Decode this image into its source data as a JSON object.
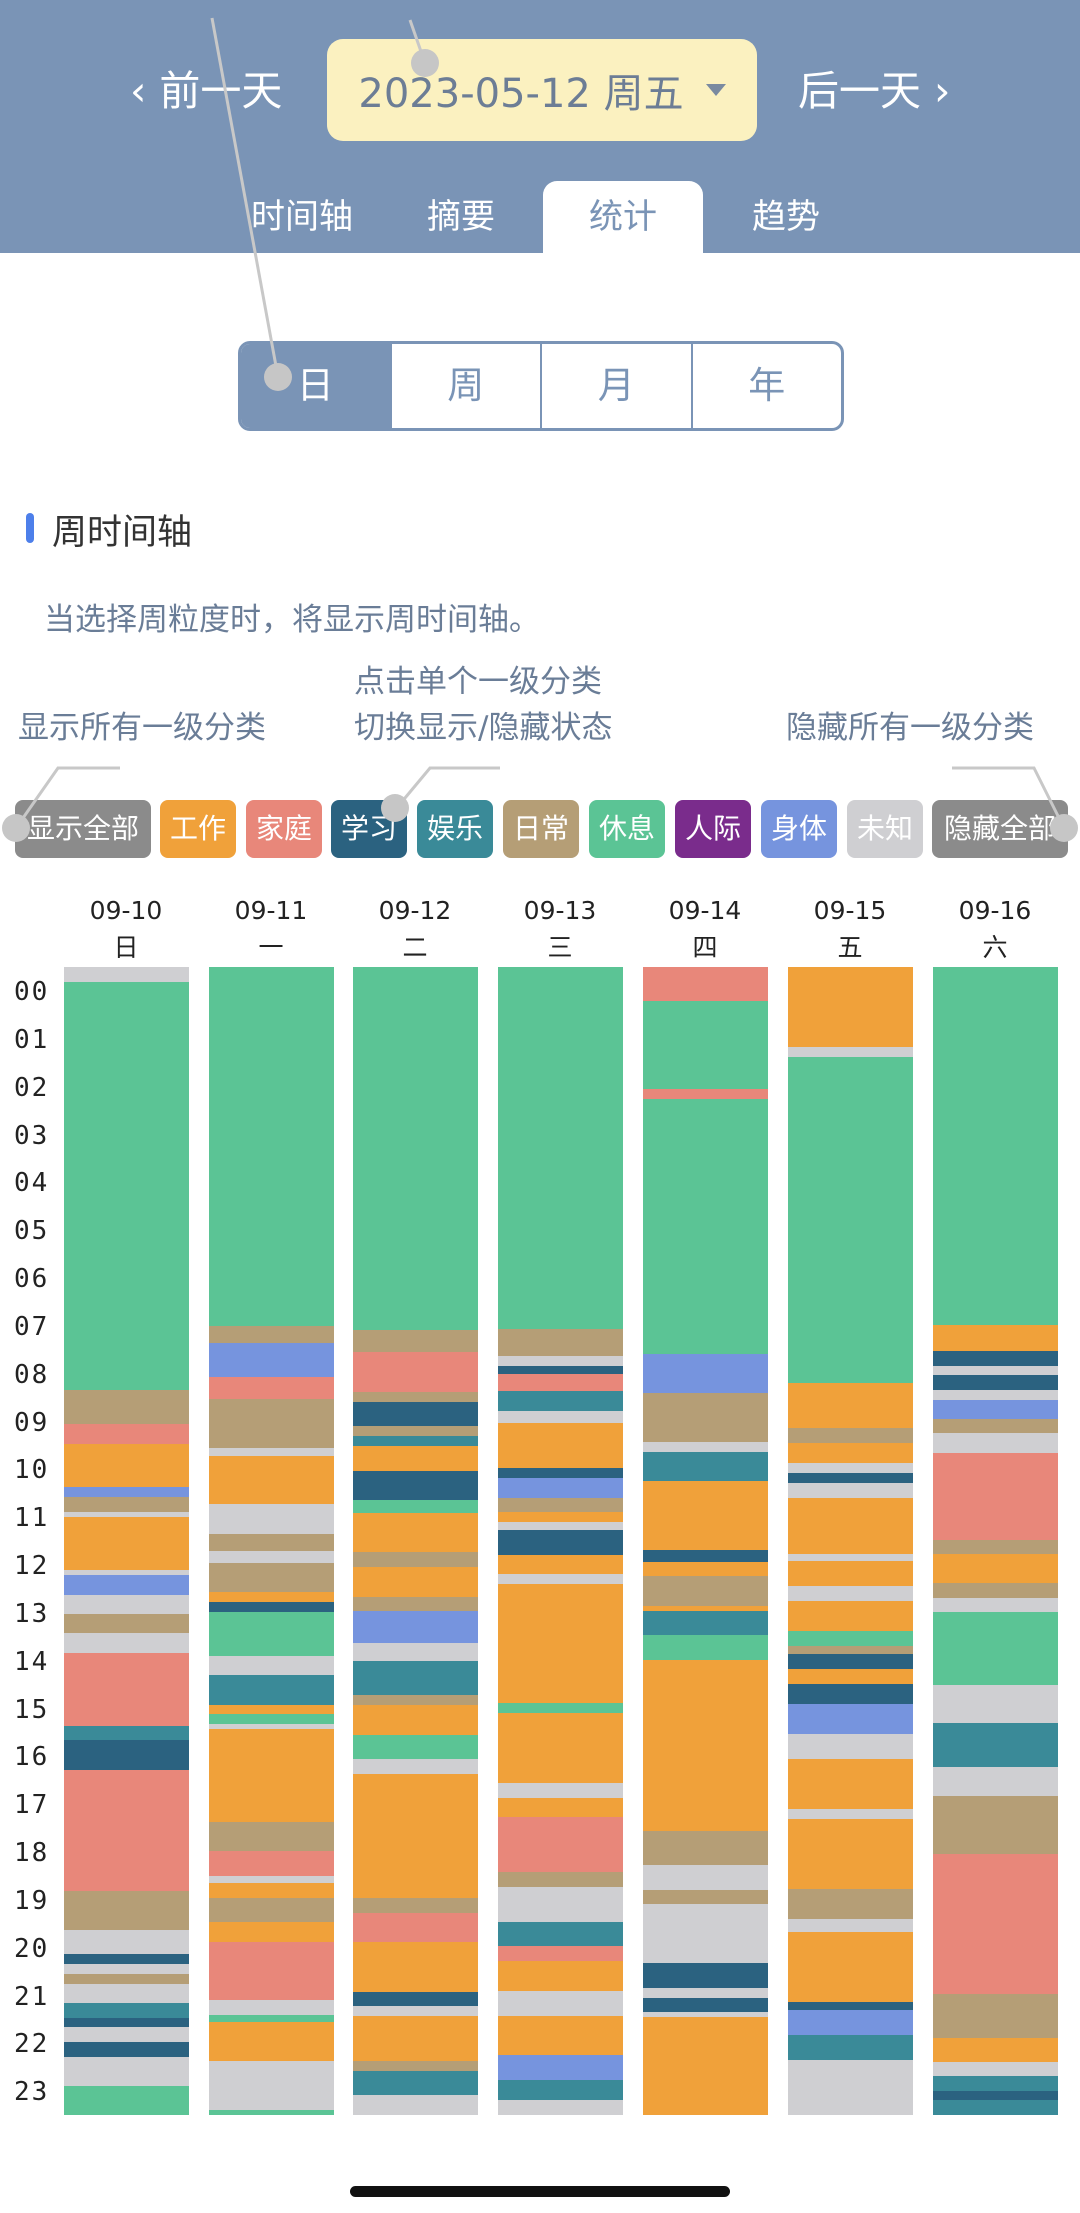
{
  "header": {
    "prev_label": "‹ 前一天",
    "next_label": "后一天 ›",
    "date_label": "2023-05-12  周五",
    "tabs": [
      {
        "label": "时间轴"
      },
      {
        "label": "摘要"
      },
      {
        "label": "统计",
        "active": true
      },
      {
        "label": "趋势"
      }
    ]
  },
  "granularity": {
    "options": [
      "日",
      "周",
      "月",
      "年"
    ],
    "selected": "日"
  },
  "section": {
    "title": "周时间轴",
    "description": "当选择周粒度时，将显示周时间轴。"
  },
  "annotations": {
    "show_all": "显示所有一级分类",
    "toggle": [
      "点击单个一级分类",
      "切换显示/隐藏状态"
    ],
    "hide_all": "隐藏所有一级分类"
  },
  "chips": [
    {
      "label": "显示全部",
      "color": "#8b8b8b"
    },
    {
      "label": "工作",
      "color": "#f0a13a"
    },
    {
      "label": "家庭",
      "color": "#e8877a"
    },
    {
      "label": "学习",
      "color": "#2b6280"
    },
    {
      "label": "娱乐",
      "color": "#3a8a98"
    },
    {
      "label": "日常",
      "color": "#b59e76"
    },
    {
      "label": "休息",
      "color": "#5bc495"
    },
    {
      "label": "人际",
      "color": "#7a2c8c"
    },
    {
      "label": "身体",
      "color": "#7694de"
    },
    {
      "label": "未知",
      "color": "#cfcfd2"
    },
    {
      "label": "隐藏全部",
      "color": "#8b8b8b"
    }
  ],
  "hours": [
    "00",
    "01",
    "02",
    "03",
    "04",
    "05",
    "06",
    "07",
    "08",
    "09",
    "10",
    "11",
    "12",
    "13",
    "14",
    "15",
    "16",
    "17",
    "18",
    "19",
    "20",
    "21",
    "22",
    "23"
  ],
  "colors": {
    "work": "#f0a13a",
    "family": "#e8877a",
    "study": "#2b6280",
    "ent": "#3a8a98",
    "daily": "#b59e76",
    "rest": "#5bc495",
    "social": "#7a2c8c",
    "body": "#7694de",
    "unknown": "#cfcfd2"
  },
  "days": [
    {
      "date": "09-10",
      "weekday": "日",
      "segments": [
        [
          "unknown",
          0.3
        ],
        [
          "rest",
          8.4
        ],
        [
          "daily",
          0.7
        ],
        [
          "family",
          0.4
        ],
        [
          "work",
          0.9
        ],
        [
          "body",
          0.2
        ],
        [
          "daily",
          0.3
        ],
        [
          "unknown",
          0.1
        ],
        [
          "work",
          1.1
        ],
        [
          "unknown",
          0.1
        ],
        [
          "body",
          0.4
        ],
        [
          "unknown",
          0.4
        ],
        [
          "daily",
          0.4
        ],
        [
          "unknown",
          0.4
        ],
        [
          "family",
          1.5
        ],
        [
          "ent",
          0.3
        ],
        [
          "study",
          0.6
        ],
        [
          "family",
          2.5
        ],
        [
          "daily",
          0.8
        ],
        [
          "unknown",
          0.5
        ],
        [
          "study",
          0.2
        ],
        [
          "unknown",
          0.2
        ],
        [
          "daily",
          0.2
        ],
        [
          "unknown",
          0.4
        ],
        [
          "ent",
          0.3
        ],
        [
          "study",
          0.2
        ],
        [
          "unknown",
          0.3
        ],
        [
          "study",
          0.3
        ],
        [
          "unknown",
          0.6
        ],
        [
          "rest",
          0.6
        ]
      ]
    },
    {
      "date": "09-11",
      "weekday": "一",
      "segments": [
        [
          "rest",
          7.35
        ],
        [
          "daily",
          0.35
        ],
        [
          "body",
          0.7
        ],
        [
          "family",
          0.45
        ],
        [
          "daily",
          1.0
        ],
        [
          "unknown",
          0.15
        ],
        [
          "work",
          1.0
        ],
        [
          "unknown",
          0.6
        ],
        [
          "daily",
          0.35
        ],
        [
          "unknown",
          0.25
        ],
        [
          "daily",
          0.6
        ],
        [
          "work",
          0.2
        ],
        [
          "study",
          0.2
        ],
        [
          "rest",
          0.9
        ],
        [
          "unknown",
          0.4
        ],
        [
          "ent",
          0.6
        ],
        [
          "work",
          0.2
        ],
        [
          "rest",
          0.2
        ],
        [
          "unknown",
          0.1
        ],
        [
          "work",
          1.9
        ],
        [
          "daily",
          0.6
        ],
        [
          "family",
          0.5
        ],
        [
          "unknown",
          0.15
        ],
        [
          "work",
          0.3
        ],
        [
          "daily",
          0.5
        ],
        [
          "work",
          0.4
        ],
        [
          "family",
          1.2
        ],
        [
          "unknown",
          0.3
        ],
        [
          "rest",
          0.15
        ],
        [
          "work",
          0.8
        ],
        [
          "unknown",
          1.0
        ],
        [
          "rest",
          0.1
        ]
      ]
    },
    {
      "date": "09-12",
      "weekday": "二",
      "segments": [
        [
          "rest",
          7.35
        ],
        [
          "daily",
          0.45
        ],
        [
          "family",
          0.8
        ],
        [
          "daily",
          0.2
        ],
        [
          "study",
          0.5
        ],
        [
          "daily",
          0.2
        ],
        [
          "ent",
          0.2
        ],
        [
          "work",
          0.5
        ],
        [
          "study",
          0.6
        ],
        [
          "rest",
          0.25
        ],
        [
          "work",
          0.8
        ],
        [
          "daily",
          0.3
        ],
        [
          "work",
          0.6
        ],
        [
          "daily",
          0.3
        ],
        [
          "body",
          0.65
        ],
        [
          "unknown",
          0.35
        ],
        [
          "ent",
          0.7
        ],
        [
          "daily",
          0.2
        ],
        [
          "work",
          0.6
        ],
        [
          "rest",
          0.5
        ],
        [
          "unknown",
          0.3
        ],
        [
          "work",
          2.5
        ],
        [
          "daily",
          0.3
        ],
        [
          "family",
          0.6
        ],
        [
          "work",
          1.0
        ],
        [
          "study",
          0.3
        ],
        [
          "unknown",
          0.2
        ],
        [
          "work",
          0.9
        ],
        [
          "daily",
          0.2
        ],
        [
          "ent",
          0.5
        ],
        [
          "unknown",
          0.4
        ]
      ]
    },
    {
      "date": "09-13",
      "weekday": "三",
      "segments": [
        [
          "rest",
          7.3
        ],
        [
          "daily",
          0.55
        ],
        [
          "unknown",
          0.2
        ],
        [
          "study",
          0.15
        ],
        [
          "family",
          0.35
        ],
        [
          "ent",
          0.4
        ],
        [
          "unknown",
          0.25
        ],
        [
          "work",
          0.9
        ],
        [
          "study",
          0.2
        ],
        [
          "body",
          0.4
        ],
        [
          "daily",
          0.3
        ],
        [
          "work",
          0.2
        ],
        [
          "unknown",
          0.15
        ],
        [
          "study",
          0.5
        ],
        [
          "work",
          0.4
        ],
        [
          "unknown",
          0.2
        ],
        [
          "work",
          2.4
        ],
        [
          "rest",
          0.2
        ],
        [
          "work",
          1.4
        ],
        [
          "unknown",
          0.3
        ],
        [
          "work",
          0.4
        ],
        [
          "family",
          1.1
        ],
        [
          "daily",
          0.3
        ],
        [
          "unknown",
          0.7
        ],
        [
          "ent",
          0.5
        ],
        [
          "family",
          0.3
        ],
        [
          "work",
          0.6
        ],
        [
          "unknown",
          0.5
        ],
        [
          "work",
          0.8
        ],
        [
          "body",
          0.5
        ],
        [
          "ent",
          0.4
        ],
        [
          "unknown",
          0.3
        ]
      ]
    },
    {
      "date": "09-14",
      "weekday": "四",
      "segments": [
        [
          "family",
          0.7
        ],
        [
          "rest",
          1.8
        ],
        [
          "family",
          0.2
        ],
        [
          "rest",
          5.2
        ],
        [
          "body",
          0.8
        ],
        [
          "daily",
          1.0
        ],
        [
          "unknown",
          0.2
        ],
        [
          "ent",
          0.6
        ],
        [
          "work",
          1.4
        ],
        [
          "study",
          0.25
        ],
        [
          "work",
          0.3
        ],
        [
          "daily",
          0.6
        ],
        [
          "work",
          0.1
        ],
        [
          "ent",
          0.5
        ],
        [
          "rest",
          0.5
        ],
        [
          "work",
          3.5
        ],
        [
          "daily",
          0.7
        ],
        [
          "unknown",
          0.5
        ],
        [
          "daily",
          0.3
        ],
        [
          "unknown",
          1.2
        ],
        [
          "study",
          0.5
        ],
        [
          "unknown",
          0.2
        ],
        [
          "study",
          0.3
        ],
        [
          "unknown",
          0.1
        ],
        [
          "work",
          2.0
        ]
      ]
    },
    {
      "date": "09-15",
      "weekday": "五",
      "segments": [
        [
          "work",
          1.6
        ],
        [
          "unknown",
          0.2
        ],
        [
          "rest",
          6.5
        ],
        [
          "work",
          0.9
        ],
        [
          "daily",
          0.3
        ],
        [
          "work",
          0.4
        ],
        [
          "unknown",
          0.2
        ],
        [
          "study",
          0.2
        ],
        [
          "unknown",
          0.3
        ],
        [
          "work",
          1.1
        ],
        [
          "unknown",
          0.15
        ],
        [
          "work",
          0.5
        ],
        [
          "unknown",
          0.3
        ],
        [
          "work",
          0.6
        ],
        [
          "rest",
          0.3
        ],
        [
          "daily",
          0.15
        ],
        [
          "study",
          0.3
        ],
        [
          "work",
          0.3
        ],
        [
          "study",
          0.4
        ],
        [
          "body",
          0.6
        ],
        [
          "unknown",
          0.5
        ],
        [
          "work",
          1.0
        ],
        [
          "unknown",
          0.2
        ],
        [
          "work",
          1.4
        ],
        [
          "daily",
          0.6
        ],
        [
          "unknown",
          0.25
        ],
        [
          "work",
          1.4
        ],
        [
          "study",
          0.15
        ],
        [
          "body",
          0.5
        ],
        [
          "ent",
          0.5
        ],
        [
          "unknown",
          1.1
        ]
      ]
    },
    {
      "date": "09-16",
      "weekday": "六",
      "segments": [
        [
          "rest",
          7.4
        ],
        [
          "work",
          0.55
        ],
        [
          "study",
          0.3
        ],
        [
          "unknown",
          0.2
        ],
        [
          "study",
          0.3
        ],
        [
          "unknown",
          0.2
        ],
        [
          "body",
          0.4
        ],
        [
          "daily",
          0.3
        ],
        [
          "unknown",
          0.4
        ],
        [
          "family",
          1.8
        ],
        [
          "daily",
          0.3
        ],
        [
          "work",
          0.6
        ],
        [
          "daily",
          0.3
        ],
        [
          "unknown",
          0.3
        ],
        [
          "rest",
          1.5
        ],
        [
          "unknown",
          0.8
        ],
        [
          "ent",
          0.9
        ],
        [
          "unknown",
          0.6
        ],
        [
          "daily",
          1.2
        ],
        [
          "family",
          2.9
        ],
        [
          "daily",
          0.9
        ],
        [
          "work",
          0.5
        ],
        [
          "unknown",
          0.3
        ],
        [
          "ent",
          0.3
        ],
        [
          "study",
          0.2
        ],
        [
          "ent",
          0.3
        ]
      ]
    }
  ]
}
